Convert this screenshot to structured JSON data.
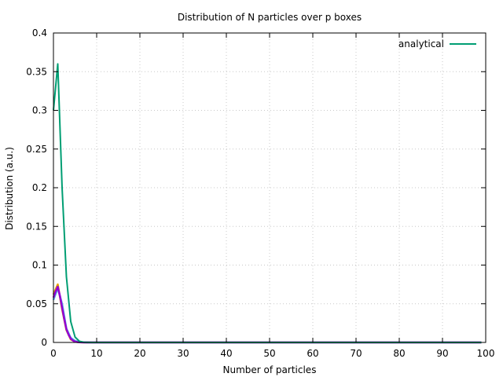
{
  "chart_data": {
    "type": "line",
    "title": "Distribution of N particles over p boxes",
    "xlabel": "Number of particles",
    "ylabel": "Distribution (a.u.)",
    "xlim": [
      0,
      100
    ],
    "ylim": [
      0,
      0.4
    ],
    "xticks": [
      "0",
      "10",
      "20",
      "30",
      "40",
      "50",
      "60",
      "70",
      "80",
      "90",
      "100"
    ],
    "yticks": [
      "0",
      "0.05",
      "0.1",
      "0.15",
      "0.2",
      "0.25",
      "0.3",
      "0.35",
      "0.4"
    ],
    "grid": true,
    "legend_position": "top-right",
    "series": [
      {
        "name": "analytical",
        "color": "#009e73",
        "x": [
          0,
          1,
          2,
          3,
          4,
          5,
          6,
          7,
          8,
          9,
          10,
          20,
          30,
          40,
          50,
          60,
          70,
          80,
          90,
          99
        ],
        "y": [
          0.3,
          0.36,
          0.2,
          0.085,
          0.027,
          0.007,
          0.0015,
          0.0003,
          0.0001,
          0,
          0,
          0,
          0,
          0,
          0,
          0,
          0,
          0,
          0,
          0
        ]
      },
      {
        "color": "#9400d3",
        "x": [
          0,
          0.5,
          1,
          1.5,
          2,
          2.5,
          3,
          3.5,
          4,
          4.5,
          5,
          5.5,
          6,
          7,
          8,
          10,
          20,
          30,
          40,
          50,
          60,
          70,
          80,
          90,
          99
        ],
        "y": [
          0.058,
          0.066,
          0.072,
          0.06,
          0.045,
          0.03,
          0.017,
          0.01,
          0.005,
          0.0025,
          0.001,
          0.0005,
          0.0002,
          0,
          0,
          0,
          0,
          0,
          0,
          0,
          0,
          0,
          0,
          0,
          0
        ]
      },
      {
        "color": "#56b4e9",
        "x": [
          0,
          1,
          2,
          3,
          4,
          5,
          6,
          8,
          10,
          20,
          30,
          40,
          50,
          60,
          70,
          80,
          90,
          99
        ],
        "y": [
          0.055,
          0.07,
          0.05,
          0.018,
          0.006,
          0.002,
          0.0005,
          0,
          0,
          0,
          0,
          0,
          0,
          0,
          0,
          0,
          0,
          0
        ]
      },
      {
        "color": "#e69f00",
        "x": [
          0,
          1,
          2,
          3,
          4,
          5,
          6,
          8,
          10,
          20,
          30,
          40,
          50,
          60,
          70,
          80,
          90,
          99
        ],
        "y": [
          0.062,
          0.075,
          0.043,
          0.016,
          0.004,
          0.001,
          0.0002,
          0,
          0,
          0,
          0,
          0,
          0,
          0,
          0,
          0,
          0,
          0
        ]
      }
    ]
  }
}
